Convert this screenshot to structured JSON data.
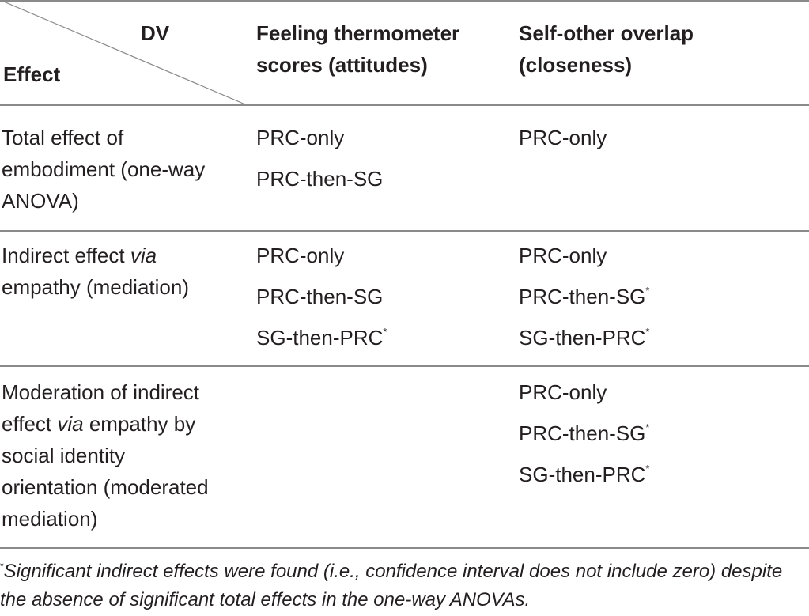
{
  "header": {
    "dv_label": "DV",
    "effect_label": "Effect",
    "col1_line1": "Feeling thermometer",
    "col1_line2": "scores (attitudes)",
    "col2_line1": "Self-other overlap",
    "col2_line2": "(closeness)"
  },
  "rows": [
    {
      "effect_lines": [
        "Total effect of",
        "embodiment (one-way",
        "ANOVA)"
      ],
      "col1": [
        {
          "text": "PRC-only",
          "mark": ""
        },
        {
          "text": "PRC-then-SG",
          "mark": ""
        }
      ],
      "col2": [
        {
          "text": "PRC-only",
          "mark": ""
        }
      ]
    },
    {
      "effect_lines": [
        "Indirect effect ",
        "via",
        "empathy (mediation)"
      ],
      "col1": [
        {
          "text": "PRC-only",
          "mark": ""
        },
        {
          "text": "PRC-then-SG",
          "mark": ""
        },
        {
          "text": "SG-then-PRC",
          "mark": "*"
        }
      ],
      "col2": [
        {
          "text": "PRC-only",
          "mark": ""
        },
        {
          "text": "PRC-then-SG",
          "mark": "*"
        },
        {
          "text": "SG-then-PRC",
          "mark": "*"
        }
      ]
    },
    {
      "effect_lines": [
        "Moderation of indirect",
        "effect ",
        "via",
        " empathy by",
        "social identity",
        "orientation (moderated",
        "mediation)"
      ],
      "col1": [],
      "col2": [
        {
          "text": "PRC-only",
          "mark": ""
        },
        {
          "text": "PRC-then-SG",
          "mark": "*"
        },
        {
          "text": "SG-then-PRC",
          "mark": "*"
        }
      ]
    }
  ],
  "footnote": {
    "mark": "*",
    "text": "Significant indirect effects were found (i.e., confidence interval does not include zero) despite the absence of significant total effects in the one-way ANOVAs."
  }
}
